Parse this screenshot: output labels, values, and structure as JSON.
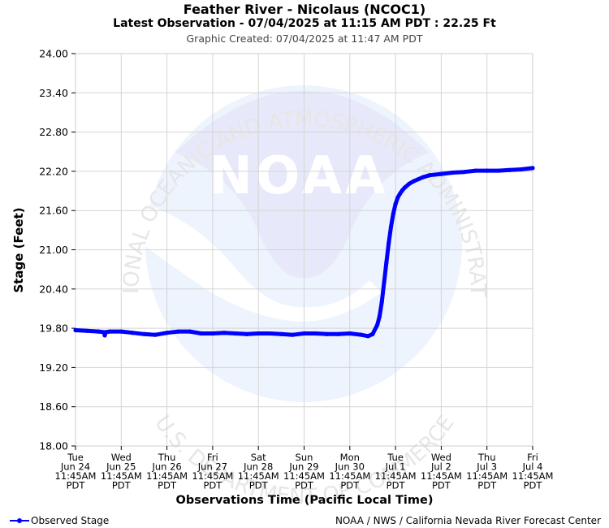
{
  "header": {
    "title": "Feather River - Nicolaus (NCOC1)",
    "subtitle": "Latest Observation - 07/04/2025 at 11:15 AM PDT : 22.25 Ft",
    "created": "Graphic Created: 07/04/2025 at 11:47 AM PDT"
  },
  "watermark": {
    "logo_text": "NOAA",
    "ring_top": "NATIONAL OCEANIC AND ATMOSPHERIC ADMINISTRATION",
    "ring_bottom": "U.S. DEPARTMENT OF COMMERCE"
  },
  "legend": {
    "label": "Observed Stage",
    "color": "#0000ff"
  },
  "credit": "NOAA / NWS / California Nevada River Forecast Center",
  "chart_data": {
    "type": "line",
    "ylabel": "Stage (Feet)",
    "xlabel": "Observations Time (Pacific Local Time)",
    "ylim": [
      18.0,
      24.0
    ],
    "yticks": [
      "18.00",
      "18.60",
      "19.20",
      "19.80",
      "20.40",
      "21.00",
      "21.60",
      "22.20",
      "22.80",
      "23.40",
      "24.00"
    ],
    "xlim": [
      0,
      10
    ],
    "xticks": [
      {
        "day": "Tue",
        "date": "Jun 24",
        "time": "11:45AM",
        "tz": "PDT"
      },
      {
        "day": "Wed",
        "date": "Jun 25",
        "time": "11:45AM",
        "tz": "PDT"
      },
      {
        "day": "Thu",
        "date": "Jun 26",
        "time": "11:45AM",
        "tz": "PDT"
      },
      {
        "day": "Fri",
        "date": "Jun 27",
        "time": "11:45AM",
        "tz": "PDT"
      },
      {
        "day": "Sat",
        "date": "Jun 28",
        "time": "11:45AM",
        "tz": "PDT"
      },
      {
        "day": "Sun",
        "date": "Jun 29",
        "time": "11:45AM",
        "tz": "PDT"
      },
      {
        "day": "Mon",
        "date": "Jun 30",
        "time": "11:45AM",
        "tz": "PDT"
      },
      {
        "day": "Tue",
        "date": "Jul 1",
        "time": "11:45AM",
        "tz": "PDT"
      },
      {
        "day": "Wed",
        "date": "Jul 2",
        "time": "11:45AM",
        "tz": "PDT"
      },
      {
        "day": "Thu",
        "date": "Jul 3",
        "time": "11:45AM",
        "tz": "PDT"
      },
      {
        "day": "Fri",
        "date": "Jul 4",
        "time": "11:45AM",
        "tz": "PDT"
      }
    ],
    "grid": true,
    "series": [
      {
        "name": "Observed Stage",
        "color": "#0000ff",
        "x": [
          0,
          0.25,
          0.5,
          0.62,
          0.64,
          0.66,
          0.75,
          1.0,
          1.25,
          1.5,
          1.75,
          2.0,
          2.25,
          2.5,
          2.75,
          3.0,
          3.25,
          3.5,
          3.75,
          4.0,
          4.25,
          4.5,
          4.75,
          5.0,
          5.25,
          5.5,
          5.75,
          6.0,
          6.25,
          6.4,
          6.5,
          6.6,
          6.65,
          6.7,
          6.75,
          6.8,
          6.85,
          6.9,
          6.95,
          7.0,
          7.05,
          7.1,
          7.15,
          7.2,
          7.3,
          7.4,
          7.5,
          7.6,
          7.75,
          8.0,
          8.25,
          8.5,
          8.75,
          9.0,
          9.25,
          9.5,
          9.75,
          10.0
        ],
        "y": [
          19.77,
          19.76,
          19.75,
          19.74,
          19.69,
          19.74,
          19.75,
          19.75,
          19.73,
          19.71,
          19.7,
          19.73,
          19.75,
          19.75,
          19.72,
          19.72,
          19.73,
          19.72,
          19.71,
          19.72,
          19.72,
          19.71,
          19.7,
          19.72,
          19.72,
          19.71,
          19.71,
          19.72,
          19.7,
          19.68,
          19.71,
          19.85,
          19.98,
          20.2,
          20.5,
          20.8,
          21.1,
          21.35,
          21.55,
          21.7,
          21.8,
          21.86,
          21.91,
          21.95,
          22.01,
          22.05,
          22.08,
          22.11,
          22.14,
          22.16,
          22.18,
          22.19,
          22.21,
          22.21,
          22.21,
          22.22,
          22.23,
          22.25
        ]
      }
    ]
  }
}
